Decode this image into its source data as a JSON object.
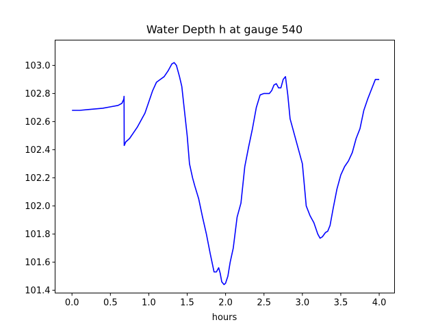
{
  "chart_data": {
    "type": "line",
    "title": "Water Depth h at gauge 540",
    "xlabel": "hours",
    "ylabel": "",
    "xlim": [
      -0.22,
      4.2
    ],
    "ylim": [
      101.38,
      103.18
    ],
    "grid": false,
    "legend": "none",
    "xticks": [
      0.0,
      0.5,
      1.0,
      1.5,
      2.0,
      2.5,
      3.0,
      3.5,
      4.0
    ],
    "xtick_labels": [
      "0.0",
      "0.5",
      "1.0",
      "1.5",
      "2.0",
      "2.5",
      "3.0",
      "3.5",
      "4.0"
    ],
    "yticks": [
      101.4,
      101.6,
      101.8,
      102.0,
      102.2,
      102.4,
      102.6,
      102.8,
      103.0
    ],
    "ytick_labels": [
      "101.4",
      "101.6",
      "101.8",
      "102.0",
      "102.2",
      "102.4",
      "102.6",
      "102.8",
      "103.0"
    ],
    "series": [
      {
        "color": "#0000ff",
        "x": [
          0.0,
          0.1,
          0.2,
          0.3,
          0.4,
          0.5,
          0.6,
          0.65,
          0.675,
          0.678,
          0.68,
          0.7,
          0.75,
          0.8,
          0.85,
          0.9,
          0.95,
          1.0,
          1.05,
          1.1,
          1.15,
          1.2,
          1.25,
          1.3,
          1.33,
          1.36,
          1.4,
          1.43,
          1.46,
          1.5,
          1.53,
          1.57,
          1.6,
          1.65,
          1.7,
          1.75,
          1.8,
          1.85,
          1.88,
          1.91,
          1.93,
          1.95,
          1.98,
          2.0,
          2.03,
          2.06,
          2.1,
          2.15,
          2.2,
          2.25,
          2.3,
          2.35,
          2.4,
          2.45,
          2.5,
          2.53,
          2.57,
          2.6,
          2.63,
          2.66,
          2.69,
          2.72,
          2.75,
          2.78,
          2.81,
          2.84,
          2.87,
          2.9,
          2.95,
          3.0,
          3.05,
          3.1,
          3.15,
          3.2,
          3.23,
          3.26,
          3.3,
          3.33,
          3.36,
          3.4,
          3.45,
          3.5,
          3.55,
          3.6,
          3.65,
          3.7,
          3.75,
          3.8,
          3.85,
          3.9,
          3.95,
          4.0
        ],
        "y": [
          102.68,
          102.68,
          102.685,
          102.69,
          102.695,
          102.705,
          102.715,
          102.73,
          102.76,
          102.78,
          102.43,
          102.455,
          102.48,
          102.52,
          102.56,
          102.61,
          102.66,
          102.74,
          102.82,
          102.88,
          102.9,
          102.92,
          102.96,
          103.01,
          103.02,
          103.0,
          102.92,
          102.85,
          102.7,
          102.5,
          102.3,
          102.2,
          102.14,
          102.05,
          101.92,
          101.8,
          101.66,
          101.53,
          101.53,
          101.56,
          101.52,
          101.46,
          101.44,
          101.45,
          101.5,
          101.6,
          101.7,
          101.92,
          102.02,
          102.28,
          102.42,
          102.55,
          102.7,
          102.79,
          102.8,
          102.8,
          102.8,
          102.82,
          102.86,
          102.87,
          102.84,
          102.84,
          102.9,
          102.92,
          102.79,
          102.62,
          102.56,
          102.5,
          102.4,
          102.3,
          102.0,
          101.93,
          101.88,
          101.8,
          101.77,
          101.78,
          101.81,
          101.82,
          101.86,
          101.98,
          102.12,
          102.22,
          102.28,
          102.32,
          102.38,
          102.48,
          102.55,
          102.68,
          102.76,
          102.83,
          102.9,
          102.9
        ]
      }
    ]
  }
}
